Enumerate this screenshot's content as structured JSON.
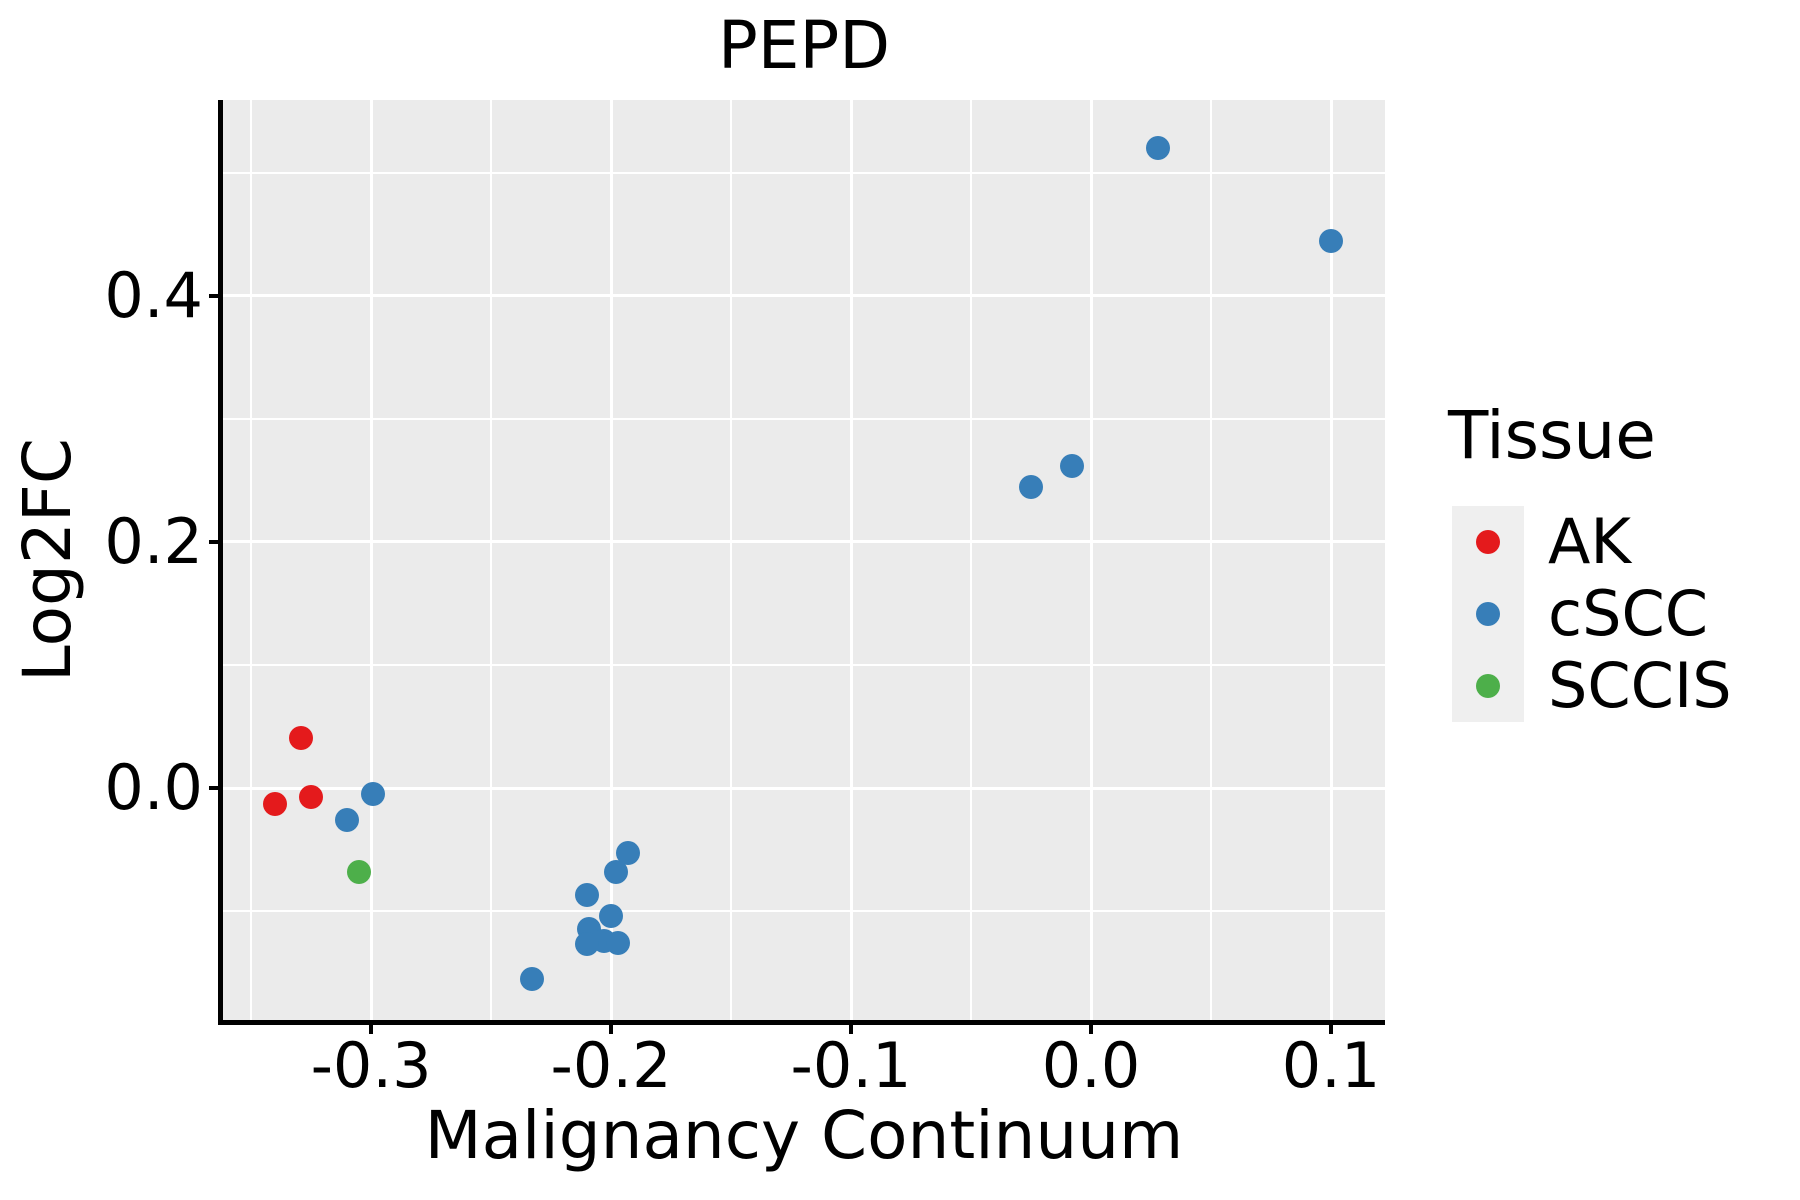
{
  "chart_data": {
    "type": "scatter",
    "title": "PEPD",
    "xlabel": "Malignancy Continuum",
    "ylabel": "Log2FC",
    "legend": {
      "title": "Tissue",
      "position": "right",
      "entries": [
        "AK",
        "cSCC",
        "SCCIS"
      ]
    },
    "panel_bg": "#ebebeb",
    "grid": true,
    "x_axis": {
      "range": [
        -0.3617,
        0.1225
      ],
      "major_ticks": [
        -0.3,
        -0.2,
        -0.1,
        0.0,
        0.1
      ],
      "tick_labels": [
        "-0.3",
        "-0.2",
        "-0.1",
        "0.0",
        "0.1"
      ],
      "minor_ticks": [
        -0.35,
        -0.25,
        -0.15,
        -0.05,
        0.05
      ]
    },
    "y_axis": {
      "range": [
        -0.1886,
        0.5593
      ],
      "major_ticks": [
        0.0,
        0.2,
        0.4
      ],
      "tick_labels": [
        "0.0",
        "0.2",
        "0.4"
      ],
      "minor_ticks": [
        -0.1,
        0.1,
        0.3,
        0.5
      ]
    },
    "series": [
      {
        "name": "AK",
        "color": "#e41a1c",
        "points": [
          [
            -0.329,
            0.041
          ],
          [
            -0.34,
            -0.013
          ],
          [
            -0.325,
            -0.007
          ]
        ]
      },
      {
        "name": "cSCC",
        "color": "#377eb8",
        "points": [
          [
            -0.299,
            -0.005
          ],
          [
            -0.31,
            -0.026
          ],
          [
            -0.193,
            -0.053
          ],
          [
            -0.198,
            -0.068
          ],
          [
            -0.21,
            -0.087
          ],
          [
            -0.2,
            -0.104
          ],
          [
            -0.209,
            -0.115
          ],
          [
            -0.203,
            -0.124
          ],
          [
            -0.197,
            -0.126
          ],
          [
            -0.21,
            -0.127
          ],
          [
            -0.233,
            -0.155
          ],
          [
            -0.025,
            0.245
          ],
          [
            -0.008,
            0.262
          ],
          [
            0.028,
            0.52
          ],
          [
            0.1,
            0.445
          ]
        ]
      },
      {
        "name": "SCCIS",
        "color": "#4daf4a",
        "points": [
          [
            -0.305,
            -0.068
          ]
        ]
      }
    ]
  }
}
